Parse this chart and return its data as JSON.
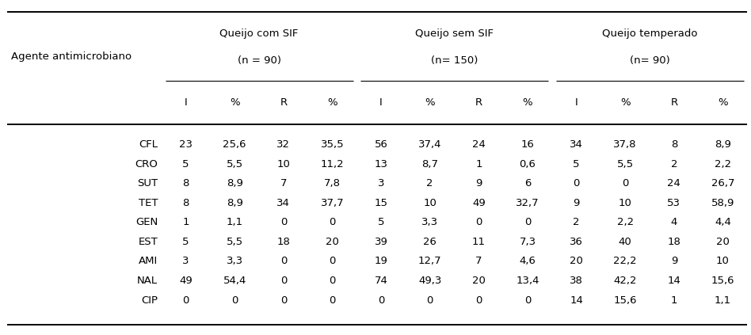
{
  "row_label_header": "Agente antimicrobiano",
  "group_labels": [
    "Queijo com SIF",
    "Queijo sem SIF",
    "Queijo temperado"
  ],
  "group_subs": [
    "(n = 90)",
    "(n= 150)",
    "(n= 90)"
  ],
  "col_subheaders": [
    "I",
    "%",
    "R",
    "%",
    "I",
    "%",
    "R",
    "%",
    "I",
    "%",
    "R",
    "%"
  ],
  "rows": [
    [
      "CFL",
      "23",
      "25,6",
      "32",
      "35,5",
      "56",
      "37,4",
      "24",
      "16",
      "34",
      "37,8",
      "8",
      "8,9"
    ],
    [
      "CRO",
      "5",
      "5,5",
      "10",
      "11,2",
      "13",
      "8,7",
      "1",
      "0,6",
      "5",
      "5,5",
      "2",
      "2,2"
    ],
    [
      "SUT",
      "8",
      "8,9",
      "7",
      "7,8",
      "3",
      "2",
      "9",
      "6",
      "0",
      "0",
      "24",
      "26,7"
    ],
    [
      "TET",
      "8",
      "8,9",
      "34",
      "37,7",
      "15",
      "10",
      "49",
      "32,7",
      "9",
      "10",
      "53",
      "58,9"
    ],
    [
      "GEN",
      "1",
      "1,1",
      "0",
      "0",
      "5",
      "3,3",
      "0",
      "0",
      "2",
      "2,2",
      "4",
      "4,4"
    ],
    [
      "EST",
      "5",
      "5,5",
      "18",
      "20",
      "39",
      "26",
      "11",
      "7,3",
      "36",
      "40",
      "18",
      "20"
    ],
    [
      "AMI",
      "3",
      "3,3",
      "0",
      "0",
      "19",
      "12,7",
      "7",
      "4,6",
      "20",
      "22,2",
      "9",
      "10"
    ],
    [
      "NAL",
      "49",
      "54,4",
      "0",
      "0",
      "74",
      "49,3",
      "20",
      "13,4",
      "38",
      "42,2",
      "14",
      "15,6"
    ],
    [
      "CIP",
      "0",
      "0",
      "0",
      "0",
      "0",
      "0",
      "0",
      "0",
      "14",
      "15,6",
      "1",
      "1,1"
    ]
  ],
  "bg_color": "#ffffff",
  "text_color": "#000000",
  "fig_width": 9.48,
  "fig_height": 4.23,
  "font_size": 9.5
}
